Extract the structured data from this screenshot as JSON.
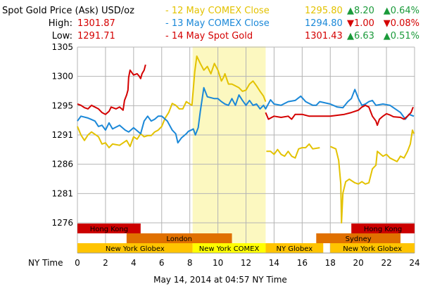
{
  "header": {
    "title": "Spot Gold Price (Ask) USD/oz",
    "high_label": "High:",
    "high_value": "1301.87",
    "low_label": "Low:",
    "low_value": "1291.71"
  },
  "legend": [
    {
      "label": "- 12 May COMEX Close",
      "value": "1295.80",
      "change": "▲8.20",
      "pct": "▲0.64%",
      "color": "#e3c200",
      "change_color": "#1a9a3a"
    },
    {
      "label": "- 13 May COMEX Close",
      "value": "1294.80",
      "change": "▼1.00",
      "pct": "▼0.08%",
      "color": "#1a88d8",
      "change_color": "#d40000"
    },
    {
      "label": "- 14 May Spot Gold",
      "value": "1301.43",
      "change": "▲6.63",
      "pct": "▲0.51%",
      "color": "#d40000",
      "change_color": "#1a9a3a"
    }
  ],
  "footer": "May 14, 2014 at 04:57 NY Time",
  "chart_data": {
    "type": "line",
    "xlabel": "NY Time",
    "xlim": [
      0,
      24
    ],
    "ylim": [
      1276,
      1305
    ],
    "x_ticks": [
      "0",
      "2",
      "4",
      "6",
      "8",
      "10",
      "12",
      "14",
      "16",
      "18",
      "20",
      "22",
      "24"
    ],
    "y_ticks": [
      {
        "value": 1305,
        "label": "1305"
      },
      {
        "value": 1300.17,
        "label": "1300"
      },
      {
        "value": 1295.33,
        "label": "1295"
      },
      {
        "value": 1290.5,
        "label": "1291"
      },
      {
        "value": 1285.67,
        "label": "1286"
      },
      {
        "value": 1280.83,
        "label": "1281"
      },
      {
        "value": 1276,
        "label": "1276"
      }
    ],
    "grid": true,
    "highlight": {
      "from": 8.2,
      "to": 13.4,
      "color": "#fcf8c0"
    },
    "series": [
      {
        "name": "12 May COMEX Close",
        "color": "#e3c200",
        "segments": [
          [
            [
              0,
              1291.9
            ],
            [
              0.25,
              1290.5
            ],
            [
              0.5,
              1289.6
            ],
            [
              0.75,
              1290.5
            ],
            [
              1,
              1291.0
            ],
            [
              1.5,
              1290.2
            ],
            [
              1.75,
              1289.0
            ],
            [
              2,
              1289.2
            ],
            [
              2.25,
              1288.4
            ],
            [
              2.5,
              1289.0
            ],
            [
              3,
              1288.8
            ],
            [
              3.5,
              1289.6
            ],
            [
              3.75,
              1288.6
            ],
            [
              4,
              1290.2
            ],
            [
              4.25,
              1289.8
            ],
            [
              4.5,
              1290.7
            ],
            [
              4.75,
              1290.2
            ],
            [
              5,
              1290.4
            ],
            [
              5.25,
              1290.4
            ],
            [
              5.5,
              1291.0
            ],
            [
              5.75,
              1291.3
            ],
            [
              6,
              1291.9
            ],
            [
              6.25,
              1293.3
            ],
            [
              6.5,
              1294.2
            ],
            [
              6.75,
              1295.7
            ],
            [
              7,
              1295.4
            ],
            [
              7.25,
              1294.8
            ],
            [
              7.5,
              1294.8
            ],
            [
              7.75,
              1296.0
            ],
            [
              8,
              1295.6
            ],
            [
              8.15,
              1295.4
            ],
            [
              8.35,
              1300.9
            ],
            [
              8.5,
              1303.5
            ],
            [
              8.75,
              1302.3
            ],
            [
              9,
              1301.2
            ],
            [
              9.25,
              1301.8
            ],
            [
              9.5,
              1300.6
            ],
            [
              9.75,
              1302.3
            ],
            [
              10,
              1301.2
            ],
            [
              10.25,
              1299.4
            ],
            [
              10.4,
              1300.0
            ],
            [
              10.5,
              1300.6
            ],
            [
              10.75,
              1298.9
            ],
            [
              11,
              1298.9
            ],
            [
              11.5,
              1298.3
            ],
            [
              11.75,
              1297.7
            ],
            [
              12,
              1297.9
            ],
            [
              12.25,
              1298.9
            ],
            [
              12.5,
              1299.4
            ],
            [
              12.75,
              1298.6
            ],
            [
              13,
              1297.7
            ],
            [
              13.25,
              1296.9
            ],
            [
              13.4,
              1296.0
            ]
          ],
          [
            [
              13.45,
              1287.8
            ],
            [
              13.75,
              1287.8
            ],
            [
              14,
              1287.3
            ],
            [
              14.25,
              1288.1
            ],
            [
              14.5,
              1287.3
            ],
            [
              14.75,
              1287.0
            ],
            [
              15,
              1287.8
            ],
            [
              15.25,
              1287.0
            ],
            [
              15.5,
              1286.7
            ],
            [
              15.75,
              1288.2
            ],
            [
              16,
              1288.4
            ],
            [
              16.25,
              1288.4
            ],
            [
              16.5,
              1289.0
            ],
            [
              16.75,
              1288.2
            ],
            [
              17.25,
              1288.4
            ]
          ],
          [
            [
              18,
              1288.6
            ],
            [
              18.4,
              1288.2
            ],
            [
              18.6,
              1286.3
            ],
            [
              18.75,
              1282.4
            ],
            [
              18.8,
              1276
            ],
            [
              18.9,
              1280.9
            ],
            [
              19.1,
              1282.8
            ],
            [
              19.35,
              1283.2
            ],
            [
              19.75,
              1282.6
            ],
            [
              20,
              1282.4
            ],
            [
              20.25,
              1282.8
            ],
            [
              20.5,
              1282.4
            ],
            [
              20.75,
              1282.6
            ],
            [
              21,
              1284.9
            ],
            [
              21.25,
              1285.5
            ],
            [
              21.35,
              1287.8
            ],
            [
              21.5,
              1287.5
            ],
            [
              21.75,
              1287.0
            ],
            [
              22,
              1287.3
            ],
            [
              22.25,
              1286.7
            ],
            [
              22.75,
              1286.1
            ],
            [
              23,
              1287.0
            ],
            [
              23.25,
              1286.7
            ],
            [
              23.5,
              1287.8
            ],
            [
              23.7,
              1289.0
            ],
            [
              23.85,
              1291.3
            ],
            [
              23.95,
              1290.7
            ]
          ]
        ]
      },
      {
        "name": "13 May COMEX Close",
        "color": "#1a88d8",
        "segments": [
          [
            [
              0,
              1292.8
            ],
            [
              0.25,
              1293.6
            ],
            [
              0.75,
              1293.3
            ],
            [
              1.25,
              1292.8
            ],
            [
              1.5,
              1291.9
            ],
            [
              1.75,
              1292.1
            ],
            [
              2,
              1291.3
            ],
            [
              2.25,
              1292.5
            ],
            [
              2.5,
              1291.5
            ],
            [
              3,
              1292.1
            ],
            [
              3.4,
              1291.3
            ],
            [
              3.65,
              1291.0
            ],
            [
              4,
              1291.7
            ],
            [
              4.5,
              1290.7
            ],
            [
              4.75,
              1292.8
            ],
            [
              5,
              1293.6
            ],
            [
              5.25,
              1292.8
            ],
            [
              5.5,
              1293.1
            ],
            [
              5.75,
              1293.6
            ],
            [
              6,
              1293.6
            ],
            [
              6.4,
              1292.8
            ],
            [
              6.75,
              1291.3
            ],
            [
              7,
              1290.7
            ],
            [
              7.15,
              1289.2
            ],
            [
              7.4,
              1290.0
            ],
            [
              7.75,
              1290.7
            ],
            [
              7.9,
              1291.1
            ],
            [
              8.1,
              1291.3
            ],
            [
              8.25,
              1291.5
            ],
            [
              8.4,
              1290.5
            ],
            [
              8.6,
              1291.7
            ],
            [
              8.75,
              1294.4
            ],
            [
              9,
              1298.3
            ],
            [
              9.25,
              1296.8
            ],
            [
              9.75,
              1296.5
            ],
            [
              10,
              1296.5
            ],
            [
              10.25,
              1296.0
            ],
            [
              10.5,
              1295.6
            ],
            [
              10.75,
              1295.4
            ],
            [
              11,
              1296.5
            ],
            [
              11.25,
              1295.4
            ],
            [
              11.5,
              1297.1
            ],
            [
              11.75,
              1296.2
            ],
            [
              12,
              1295.4
            ],
            [
              12.25,
              1296.2
            ],
            [
              12.5,
              1295.4
            ],
            [
              12.75,
              1295.6
            ],
            [
              13,
              1294.8
            ],
            [
              13.25,
              1295.4
            ],
            [
              13.4,
              1294.8
            ],
            [
              13.75,
              1296.3
            ],
            [
              14,
              1295.6
            ],
            [
              14.5,
              1295.4
            ],
            [
              15,
              1296.0
            ],
            [
              15.5,
              1296.2
            ],
            [
              15.9,
              1296.9
            ],
            [
              16.25,
              1296.0
            ],
            [
              16.75,
              1295.4
            ],
            [
              17,
              1295.4
            ],
            [
              17.25,
              1296.0
            ],
            [
              18,
              1295.6
            ],
            [
              18.5,
              1295.1
            ],
            [
              18.9,
              1295.0
            ],
            [
              19.25,
              1296.0
            ],
            [
              19.5,
              1296.5
            ],
            [
              19.75,
              1298.0
            ],
            [
              20,
              1296.5
            ],
            [
              20.25,
              1295.4
            ],
            [
              20.5,
              1295.6
            ],
            [
              20.75,
              1296.0
            ],
            [
              21,
              1296.2
            ],
            [
              21.25,
              1295.4
            ],
            [
              21.75,
              1295.6
            ],
            [
              22.25,
              1295.4
            ],
            [
              23,
              1294.2
            ],
            [
              23.35,
              1293.1
            ],
            [
              23.6,
              1293.9
            ],
            [
              23.95,
              1293.6
            ]
          ]
        ]
      },
      {
        "name": "14 May Spot Gold",
        "color": "#d40000",
        "segments": [
          [
            [
              0,
              1295.6
            ],
            [
              0.25,
              1295.4
            ],
            [
              0.5,
              1295.0
            ],
            [
              0.75,
              1294.8
            ],
            [
              1,
              1295.4
            ],
            [
              1.5,
              1294.8
            ],
            [
              1.75,
              1294.2
            ],
            [
              2,
              1293.9
            ],
            [
              2.25,
              1294.4
            ],
            [
              2.4,
              1295.1
            ],
            [
              2.75,
              1294.8
            ],
            [
              3,
              1295.1
            ],
            [
              3.25,
              1294.6
            ],
            [
              3.35,
              1296.2
            ],
            [
              3.5,
              1297.1
            ],
            [
              3.6,
              1297.9
            ],
            [
              3.65,
              1300.0
            ],
            [
              3.75,
              1301.2
            ],
            [
              4,
              1300.4
            ],
            [
              4.25,
              1300.6
            ],
            [
              4.4,
              1300.2
            ],
            [
              4.5,
              1299.8
            ],
            [
              4.6,
              1300.6
            ],
            [
              4.75,
              1301.2
            ],
            [
              4.85,
              1302.1
            ]
          ],
          [
            [
              13.4,
              1294.2
            ],
            [
              13.6,
              1293.1
            ],
            [
              14,
              1293.6
            ],
            [
              14.5,
              1293.4
            ],
            [
              15,
              1293.6
            ],
            [
              15.25,
              1293.1
            ],
            [
              15.5,
              1293.9
            ],
            [
              16,
              1293.9
            ],
            [
              16.5,
              1293.6
            ],
            [
              17,
              1293.6
            ],
            [
              17.5,
              1293.6
            ],
            [
              18,
              1293.6
            ],
            [
              19,
              1293.9
            ],
            [
              19.5,
              1294.2
            ],
            [
              20,
              1294.6
            ],
            [
              20.25,
              1295.1
            ],
            [
              20.5,
              1295.4
            ],
            [
              20.75,
              1295.1
            ],
            [
              20.9,
              1294.2
            ],
            [
              21,
              1293.6
            ],
            [
              21.25,
              1292.8
            ],
            [
              21.35,
              1292.1
            ],
            [
              21.5,
              1293.1
            ],
            [
              21.75,
              1293.6
            ],
            [
              22,
              1294.0
            ],
            [
              22.25,
              1293.8
            ],
            [
              22.5,
              1293.5
            ],
            [
              23,
              1293.4
            ],
            [
              23.25,
              1293.1
            ],
            [
              23.5,
              1293.6
            ],
            [
              23.75,
              1294.2
            ],
            [
              23.9,
              1295.1
            ]
          ]
        ]
      }
    ],
    "sessions": [
      {
        "row": 0,
        "label": "Hong Kong",
        "from": 0,
        "to": 4.5,
        "color": "#cc0000"
      },
      {
        "row": 0,
        "label": "Hong Kong",
        "from": 19.5,
        "to": 24,
        "color": "#cc0000"
      },
      {
        "row": 1,
        "label": "London",
        "from": 3.5,
        "to": 11,
        "color": "#e07000"
      },
      {
        "row": 1,
        "label": "Sydney",
        "from": 17,
        "to": 23,
        "color": "#e07000"
      },
      {
        "row": 2,
        "label": "New York Globex",
        "from": 0,
        "to": 8.2,
        "color": "#ffc400"
      },
      {
        "row": 2,
        "label": "New York COMEX",
        "from": 8.2,
        "to": 13.4,
        "color": "#ffff00"
      },
      {
        "row": 2,
        "label": "NY Globex",
        "from": 13.4,
        "to": 17.5,
        "color": "#ffc400"
      },
      {
        "row": 2,
        "label": "New York Globex",
        "from": 18,
        "to": 24,
        "color": "#ffc400"
      }
    ]
  }
}
